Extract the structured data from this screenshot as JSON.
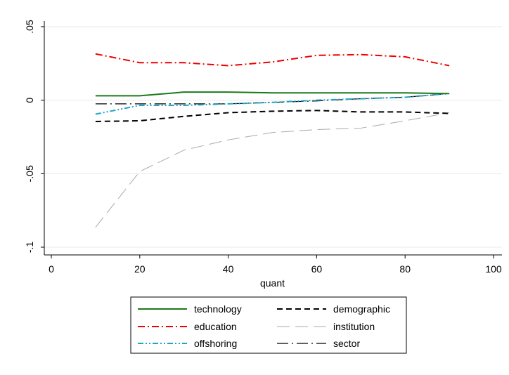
{
  "chart_data": {
    "type": "line",
    "xlabel": "quant",
    "ylabel": "",
    "title": "",
    "xlim": [
      0,
      100
    ],
    "ylim": [
      -0.1,
      0.05
    ],
    "xticks": [
      0,
      20,
      40,
      60,
      80,
      100
    ],
    "yticks": [
      0.05,
      0,
      -0.05,
      -0.1
    ],
    "xtick_labels": [
      "0",
      "20",
      "40",
      "60",
      "80",
      "100"
    ],
    "ytick_labels": [
      ".05",
      "0",
      "-.05",
      "-.1"
    ],
    "grid": "horizontal",
    "legend_position": "bottom",
    "x": [
      10,
      20,
      30,
      40,
      50,
      60,
      70,
      80,
      90
    ],
    "series": [
      {
        "name": "technology",
        "values": [
          0.003,
          0.003,
          0.0055,
          0.0055,
          0.005,
          0.005,
          0.005,
          0.005,
          0.0045
        ],
        "color": "#1a7a1a",
        "dash": "solid"
      },
      {
        "name": "demographic",
        "values": [
          -0.0145,
          -0.014,
          -0.011,
          -0.0085,
          -0.0075,
          -0.007,
          -0.008,
          -0.008,
          -0.009
        ],
        "color": "#000000",
        "dash": "dashed"
      },
      {
        "name": "education",
        "values": [
          0.0315,
          0.0255,
          0.0255,
          0.0235,
          0.026,
          0.0305,
          0.031,
          0.0295,
          0.0235
        ],
        "color": "#ee0000",
        "dash": "dashdot"
      },
      {
        "name": "institution",
        "values": [
          -0.0865,
          -0.0485,
          -0.034,
          -0.027,
          -0.022,
          -0.02,
          -0.019,
          -0.014,
          -0.0085
        ],
        "color": "#aaaaaa",
        "dash": "longdash"
      },
      {
        "name": "offshoring",
        "values": [
          -0.0095,
          -0.0035,
          -0.0035,
          -0.0025,
          -0.0015,
          0.0,
          0.001,
          0.002,
          0.0045
        ],
        "color": "#1ba6c4",
        "dash": "dashdotdot"
      },
      {
        "name": "sector",
        "values": [
          -0.0025,
          -0.0025,
          -0.0025,
          -0.0025,
          -0.0015,
          -0.0005,
          0.001,
          0.002,
          0.0045
        ],
        "color": "#000000",
        "dash": "longdashdot"
      }
    ]
  }
}
